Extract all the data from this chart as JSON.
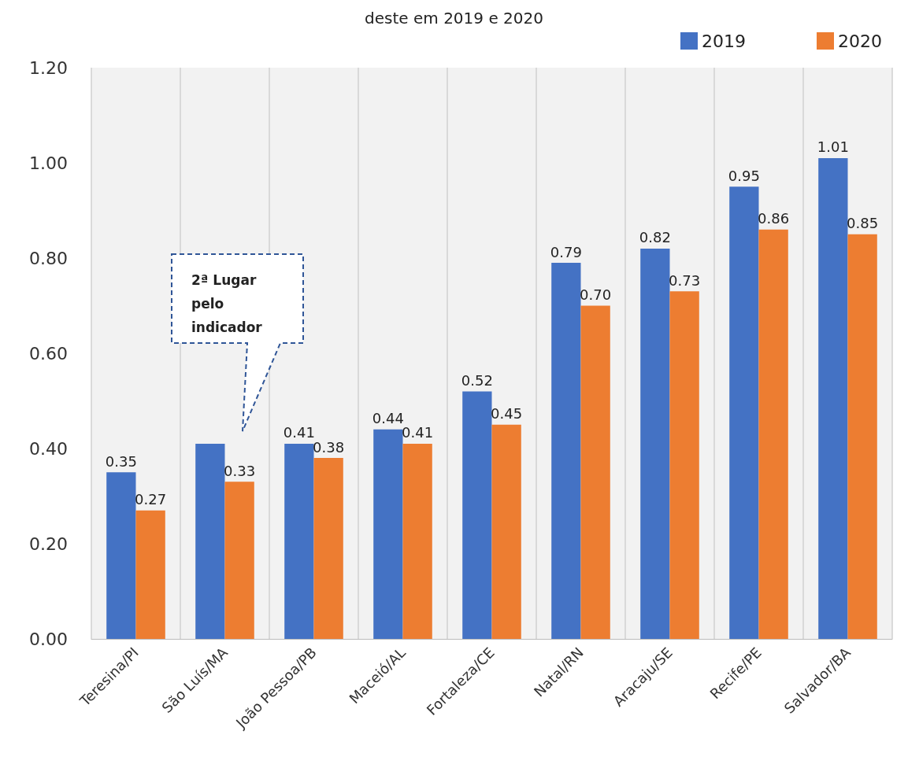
{
  "chart_data": {
    "type": "bar",
    "title": "deste em 2019 e 2020",
    "categories": [
      "Teresina/PI",
      "São Luís/MA",
      "João Pessoa/PB",
      "Maceió/AL",
      "Fortaleza/CE",
      "Natal/RN",
      "Aracaju/SE",
      "Recife/PE",
      "Salvador/BA"
    ],
    "series": [
      {
        "name": "2019",
        "color": "#4472c4",
        "values": [
          0.35,
          0.41,
          0.41,
          0.44,
          0.52,
          0.79,
          0.82,
          0.95,
          1.01
        ],
        "value_labels": [
          "0.35",
          null,
          "0.41",
          "0.44",
          "0.52",
          "0.79",
          "0.82",
          "0.95",
          "1.01"
        ]
      },
      {
        "name": "2020",
        "color": "#ed7d31",
        "values": [
          0.27,
          0.33,
          0.38,
          0.41,
          0.45,
          0.7,
          0.73,
          0.86,
          0.85
        ],
        "value_labels": [
          "0.27",
          "0.33",
          "0.38",
          "0.41",
          "0.45",
          "0.70",
          "0.73",
          "0.86",
          "0.85"
        ]
      }
    ],
    "ylim": [
      0,
      1.2
    ],
    "yticks": [
      {
        "value": 0,
        "label": "0.00"
      },
      {
        "value": 0.2,
        "label": "0.20"
      },
      {
        "value": 0.4,
        "label": "0.40"
      },
      {
        "value": 0.6,
        "label": "0.60"
      },
      {
        "value": 0.8,
        "label": "0.80"
      },
      {
        "value": 1,
        "label": "1.00"
      },
      {
        "value": 1.2,
        "label": "1.20"
      }
    ],
    "grid": "x",
    "legend": "top right",
    "annotations": [
      "2ª Lugar\npelo\nindicador"
    ]
  }
}
